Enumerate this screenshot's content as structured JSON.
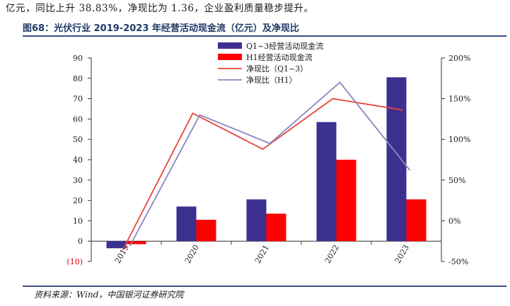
{
  "top_text": "亿元，同比上升 38.83%，净现比为 1.36，企业盈利质量稳步提升。",
  "figure_title": "图68：光伏行业 2019-2023 年经营活动现金流（亿元）及净现比",
  "source": "资料来源：Wind，中国银河证券研究院",
  "colors": {
    "q1_bar": "#3d3190",
    "h1_bar": "#ff0000",
    "q1_line": "#e8443a",
    "h1_line": "#8a86c0",
    "axis": "#333333",
    "title": "#1f3a68"
  },
  "chart_data": {
    "type": "bar+line",
    "categories": [
      "2019",
      "2020",
      "2021",
      "2022",
      "2023"
    ],
    "left_axis": {
      "min": -10,
      "max": 90,
      "ticks": [
        -10,
        0,
        10,
        20,
        30,
        40,
        50,
        60,
        70,
        80,
        90
      ],
      "tick_labels": [
        "(10)",
        "0",
        "10",
        "20",
        "30",
        "40",
        "50",
        "60",
        "70",
        "80",
        "90"
      ]
    },
    "right_axis": {
      "min": -50,
      "max": 200,
      "ticks": [
        -50,
        0,
        50,
        100,
        150,
        200
      ],
      "tick_labels": [
        "-50%",
        "0%",
        "50%",
        "100%",
        "150%",
        "200%"
      ]
    },
    "series": [
      {
        "name": "Q1~3经营活动现金流",
        "kind": "bar",
        "axis": "left",
        "values": [
          -3.5,
          17,
          20.5,
          58.5,
          80.5
        ]
      },
      {
        "name": "H1经营活动现金流",
        "kind": "bar",
        "axis": "left",
        "values": [
          -1.5,
          10.5,
          13.5,
          40,
          20.5
        ]
      },
      {
        "name": "净现比（Q1~3）",
        "kind": "line",
        "axis": "right",
        "values": [
          -36,
          132,
          88,
          150,
          136
        ]
      },
      {
        "name": "净现比（H1）",
        "kind": "line",
        "axis": "right",
        "values": [
          -31,
          130,
          95,
          170,
          62
        ]
      }
    ],
    "legend_position": "top-right",
    "grid": false
  }
}
